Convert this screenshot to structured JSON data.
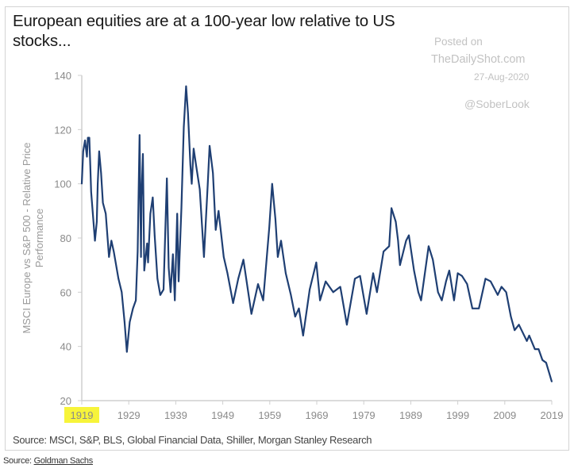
{
  "title": "European equities are at a 100-year low relative to US stocks...",
  "watermark": {
    "posted_on": "Posted on",
    "site": "TheDailyShot.com",
    "date": "27-Aug-2020",
    "handle": "@SoberLook"
  },
  "source_inner": "Source: MSCI, S&P, BLS, Global Financial Data, Shiller, Morgan Stanley Research",
  "source_outer": {
    "prefix": "Source: ",
    "link": "Goldman Sachs"
  },
  "colors": {
    "line": "#1f3f73",
    "axis": "#cfcfcf",
    "highlight": "#f7f43a"
  },
  "chart_data": {
    "type": "line",
    "title": "European equities are at a 100-year low relative to US stocks...",
    "xlabel": "",
    "ylabel": "MSCI Europe vs S&P 500 - Relative Price Performance",
    "xlim": [
      1919,
      2019
    ],
    "ylim": [
      20,
      140
    ],
    "x_ticks": [
      "1919",
      "1929",
      "1939",
      "1949",
      "1959",
      "1969",
      "1979",
      "1989",
      "1999",
      "2009",
      "2019"
    ],
    "y_ticks": [
      20,
      40,
      60,
      80,
      100,
      120,
      140
    ],
    "highlighted_tick": "1919",
    "grid": false,
    "x": [
      1919.0,
      1919.3,
      1919.7,
      1920.1,
      1920.3,
      1920.6,
      1920.8,
      1921.0,
      1921.8,
      1922.2,
      1922.4,
      1922.7,
      1923.1,
      1923.5,
      1924.1,
      1924.8,
      1925.3,
      1925.8,
      1926.8,
      1927.5,
      1928.1,
      1928.6,
      1929.2,
      1929.9,
      1930.5,
      1930.9,
      1931.3,
      1931.6,
      1931.7,
      1932.0,
      1932.3,
      1932.9,
      1933.1,
      1933.6,
      1934.1,
      1934.5,
      1935.1,
      1935.7,
      1936.4,
      1937.1,
      1937.5,
      1937.9,
      1938.4,
      1938.8,
      1939.3,
      1939.6,
      1940.2,
      1940.7,
      1941.2,
      1941.6,
      1942.1,
      1942.4,
      1942.8,
      1943.3,
      1944.1,
      1945.0,
      1945.8,
      1946.2,
      1946.9,
      1947.5,
      1948.1,
      1949.2,
      1950.0,
      1951.2,
      1952.3,
      1953.4,
      1955.1,
      1956.5,
      1957.6,
      1958.9,
      1959.5,
      1960.2,
      1960.7,
      1961.4,
      1962.4,
      1963.5,
      1964.4,
      1965.2,
      1966.1,
      1967.5,
      1968.9,
      1969.7,
      1970.9,
      1972.5,
      1974.0,
      1974.5,
      1975.4,
      1977.1,
      1978.2,
      1979.6,
      1981.0,
      1981.8,
      1983.2,
      1984.4,
      1984.9,
      1985.8,
      1986.3,
      1986.7,
      1988.0,
      1988.6,
      1989.7,
      1990.6,
      1991.2,
      1992.8,
      1993.7,
      1994.8,
      1995.6,
      1996.5,
      1997.2,
      1998.2,
      1999.0,
      1999.9,
      2001.0,
      2002.1,
      2003.5,
      2004.9,
      2006.0,
      2007.5,
      2008.3,
      2009.3,
      2010.3,
      2011.1,
      2012.0,
      2013.7,
      2014.2,
      2015.4,
      2016.2,
      2017.0,
      2017.8,
      2019.0
    ],
    "series": [
      {
        "values": [
          100,
          112,
          116,
          110,
          117,
          117,
          107,
          97,
          79,
          86,
          100,
          112,
          104,
          93,
          89,
          73,
          79,
          75,
          65,
          60,
          49,
          38,
          49,
          54,
          57,
          75,
          118,
          73,
          95,
          111,
          68,
          78,
          71,
          89,
          95,
          81,
          65,
          59,
          61,
          102,
          69,
          60,
          74,
          57,
          89,
          64,
          91,
          121,
          136,
          126,
          107,
          100,
          113,
          107,
          98,
          73,
          100,
          114,
          104,
          83,
          90,
          73,
          67,
          56,
          65,
          72,
          52,
          63,
          57,
          84,
          100,
          87,
          73,
          79,
          67,
          59,
          51,
          54,
          44,
          61,
          71,
          57,
          64,
          60,
          62,
          57,
          48,
          65,
          66,
          52,
          67,
          60,
          75,
          77,
          91,
          86,
          79,
          70,
          79,
          81,
          68,
          60,
          57,
          77,
          72,
          60,
          57,
          64,
          68,
          57,
          67,
          66,
          63,
          54,
          54,
          65,
          64,
          59,
          62,
          60,
          51,
          46,
          48,
          42,
          44,
          39,
          39,
          35,
          34,
          27
        ]
      }
    ]
  }
}
